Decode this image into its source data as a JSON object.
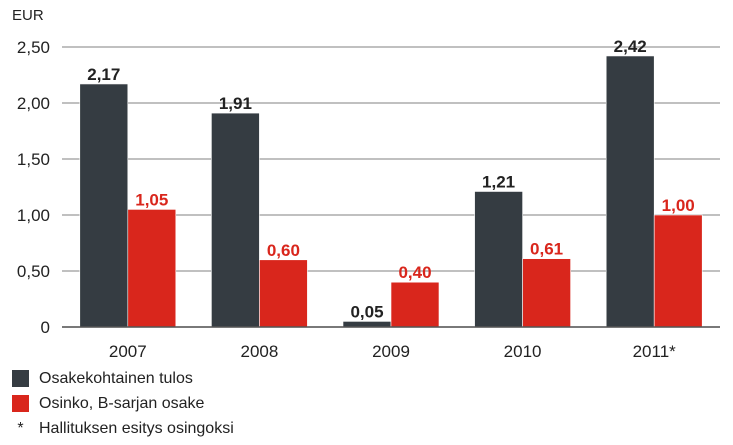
{
  "chart_data": {
    "type": "bar",
    "unit_label": "EUR",
    "categories": [
      "2007",
      "2008",
      "2009",
      "2010",
      "2011*"
    ],
    "ylim": [
      0,
      2.5
    ],
    "yticks": [
      0,
      0.5,
      1.0,
      1.5,
      2.0,
      2.5
    ],
    "ytick_labels": [
      "0",
      "0,50",
      "1,00",
      "1,50",
      "2,00",
      "2,50"
    ],
    "grid": true,
    "series": [
      {
        "name": "Osakekohtainen tulos",
        "color": "#353c42",
        "label_color": "#222222",
        "values": [
          2.17,
          1.91,
          0.05,
          1.21,
          2.42
        ],
        "labels": [
          "2,17",
          "1,91",
          "0,05",
          "1,21",
          "2,42"
        ]
      },
      {
        "name": "Osinko, B-sarjan osake",
        "color": "#d9261c",
        "label_color": "#d9261c",
        "values": [
          1.05,
          0.6,
          0.4,
          0.61,
          1.0
        ],
        "labels": [
          "1,05",
          "0,60",
          "0,40",
          "0,61",
          "1,00"
        ]
      }
    ],
    "legend_placement": "bottom-left",
    "footnote": {
      "symbol": "*",
      "text": "Hallituksen esitys osingoksi"
    }
  }
}
